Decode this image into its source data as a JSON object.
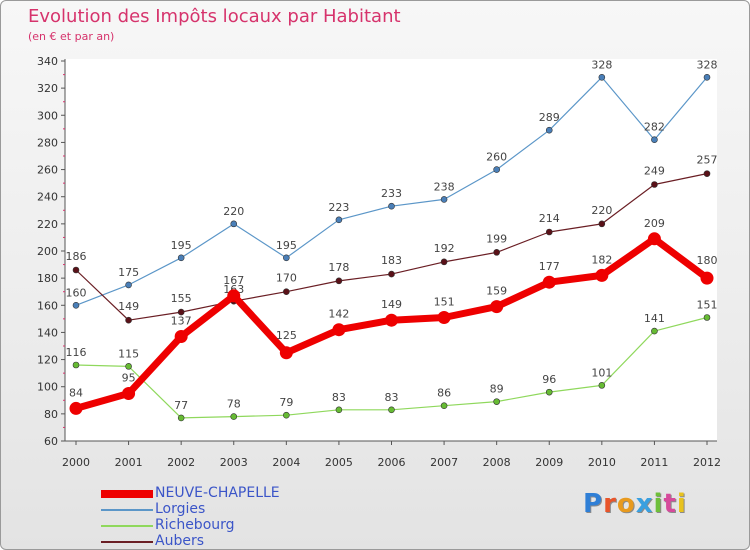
{
  "title": "Evolution des Impôts locaux par Habitant",
  "subtitle": "(en € et par an)",
  "brand": {
    "text": "Proxiti",
    "letter_colors": [
      "#2f7fd6",
      "#e8552a",
      "#e89a1e",
      "#3aa0e0",
      "#6fbf3a",
      "#d64a9b",
      "#e8c21e"
    ]
  },
  "chart_data": {
    "type": "line",
    "title": "Evolution des Impôts locaux par Habitant",
    "subtitle": "(en € et par an)",
    "x": [
      "2000",
      "2001",
      "2002",
      "2003",
      "2004",
      "2005",
      "2006",
      "2007",
      "2008",
      "2009",
      "2010",
      "2011",
      "2012"
    ],
    "ylim": [
      60,
      340
    ],
    "yticks": [
      60,
      80,
      100,
      120,
      140,
      160,
      180,
      200,
      220,
      240,
      260,
      280,
      300,
      320,
      340
    ],
    "grid": false,
    "legend": "bottom-left",
    "series": [
      {
        "name": "Lorgies",
        "color": "#5b96c8",
        "values": [
          160,
          175,
          195,
          220,
          195,
          223,
          233,
          238,
          260,
          289,
          328,
          282,
          328
        ]
      },
      {
        "name": "Aubers",
        "color": "#6a1e24",
        "values": [
          186,
          149,
          155,
          163,
          170,
          178,
          183,
          192,
          199,
          214,
          220,
          249,
          257
        ]
      },
      {
        "name": "Richebourg",
        "color": "#8fd85c",
        "values": [
          116,
          115,
          77,
          78,
          79,
          83,
          83,
          86,
          89,
          96,
          101,
          141,
          151
        ]
      },
      {
        "name": "NEUVE-CHAPELLE",
        "color": "#ee0000",
        "values": [
          84,
          95,
          137,
          167,
          125,
          142,
          149,
          151,
          159,
          177,
          182,
          209,
          180
        ]
      }
    ],
    "legend_order": [
      "NEUVE-CHAPELLE",
      "Lorgies",
      "Richebourg",
      "Aubers"
    ]
  }
}
